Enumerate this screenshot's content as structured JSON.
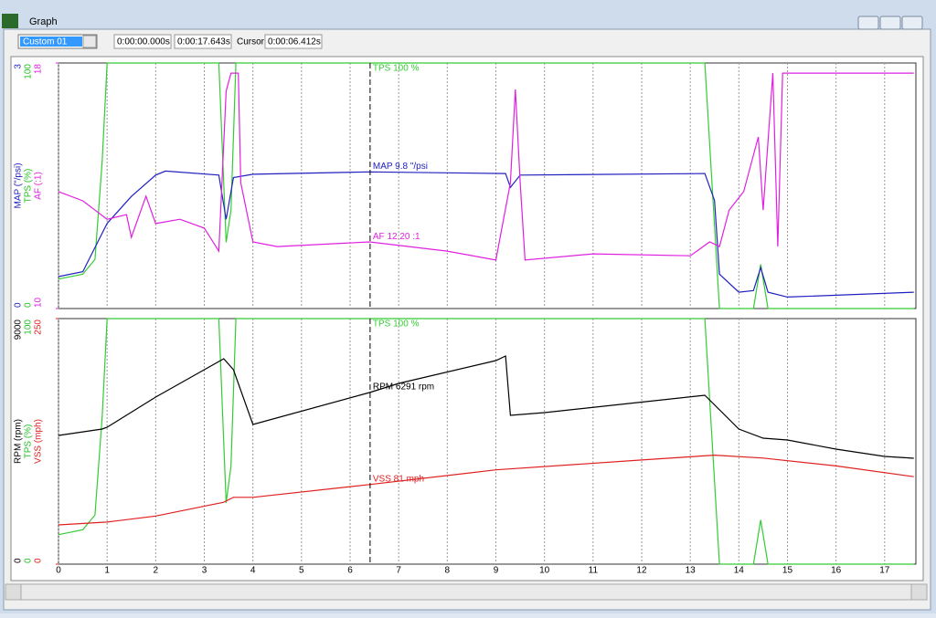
{
  "window": {
    "title": "Graph",
    "preset": "Custom 01",
    "start_time": "0:00:00.000s",
    "end_time": "0:00:17.643s",
    "cursor_caption": "Cursor",
    "cursor_time": "0:00:06.412s"
  },
  "chart_data": [
    {
      "type": "line",
      "xlim": [
        0,
        17.643
      ],
      "xticks": [
        0,
        1,
        2,
        3,
        4,
        5,
        6,
        7,
        8,
        9,
        10,
        11,
        12,
        13,
        14,
        15,
        16,
        17
      ],
      "cursor": 6.412,
      "axes": [
        {
          "label": "MAP (\"/psi)",
          "color": "#2020c0",
          "ylim": [
            0,
            3
          ],
          "yticks": [
            0,
            3
          ]
        },
        {
          "label": "TPS (%)",
          "color": "#20c020",
          "ylim": [
            0,
            100
          ],
          "yticks": [
            0,
            100
          ]
        },
        {
          "label": "AF (:1)",
          "color": "#e020e0",
          "ylim": [
            10,
            18
          ],
          "yticks": [
            10,
            18
          ]
        }
      ],
      "series": [
        {
          "axis": 1,
          "color": "#33cc33",
          "label": "TPS 100 %",
          "x": [
            0,
            0.5,
            0.75,
            0.9,
            1.0,
            3.3,
            3.45,
            3.55,
            3.65,
            13.3,
            13.45,
            13.6,
            14.3,
            14.45,
            14.6,
            17.6
          ],
          "values": [
            12,
            14,
            20,
            60,
            100,
            100,
            27,
            40,
            100,
            100,
            50,
            0,
            0,
            18,
            0,
            0
          ]
        },
        {
          "axis": 0,
          "color": "#2020c0",
          "label": "MAP 9.8 \"/psi",
          "x": [
            0,
            0.5,
            1.0,
            1.5,
            2.0,
            2.2,
            3.3,
            3.45,
            3.6,
            4.0,
            6.4,
            9.2,
            9.3,
            9.5,
            13.3,
            13.5,
            13.6,
            14.0,
            14.3,
            14.45,
            14.6,
            15.0,
            17.6
          ],
          "values": [
            0.39,
            0.45,
            1.04,
            1.37,
            1.63,
            1.68,
            1.63,
            1.09,
            1.6,
            1.64,
            1.67,
            1.65,
            1.48,
            1.63,
            1.65,
            1.32,
            0.42,
            0.2,
            0.22,
            0.5,
            0.2,
            0.14,
            0.2
          ]
        },
        {
          "axis": 2,
          "color": "#e020e0",
          "label": "AF 12.20 :1",
          "x": [
            0,
            0.5,
            1.0,
            1.4,
            1.5,
            1.8,
            2.0,
            2.5,
            3.0,
            3.3,
            3.45,
            3.55,
            3.7,
            3.75,
            4.0,
            4.5,
            6.4,
            8.0,
            9.0,
            9.3,
            9.4,
            9.5,
            9.6,
            11.0,
            13.0,
            13.4,
            13.6,
            13.8,
            14.1,
            14.4,
            14.5,
            14.7,
            14.8,
            14.9,
            17.6
          ],
          "values": [
            13.81,
            13.51,
            12.91,
            13.06,
            12.32,
            13.66,
            12.77,
            12.91,
            12.62,
            11.87,
            17.08,
            17.67,
            17.67,
            14.1,
            12.17,
            12.02,
            12.17,
            11.87,
            11.58,
            14.1,
            17.14,
            14.1,
            11.58,
            11.78,
            11.72,
            12.17,
            12.02,
            13.21,
            13.81,
            15.59,
            13.21,
            17.67,
            12.02,
            17.67,
            17.67
          ]
        }
      ]
    },
    {
      "type": "line",
      "xlim": [
        0,
        17.643
      ],
      "xticks": [
        0,
        1,
        2,
        3,
        4,
        5,
        6,
        7,
        8,
        9,
        10,
        11,
        12,
        13,
        14,
        15,
        16,
        17
      ],
      "cursor": 6.412,
      "axes": [
        {
          "label": "RPM (rpm)",
          "color": "#000000",
          "ylim": [
            0,
            9000
          ],
          "yticks": [
            0,
            9000
          ]
        },
        {
          "label": "TPS (%)",
          "color": "#20c020",
          "ylim": [
            0,
            100
          ],
          "yticks": [
            0,
            100
          ]
        },
        {
          "label": "VSS (mph)",
          "color": "#e02020",
          "ylim": [
            0,
            250
          ],
          "yticks": [
            0,
            250
          ]
        }
      ],
      "series": [
        {
          "axis": 1,
          "color": "#33cc33",
          "label": "TPS 100 %",
          "x": [
            0,
            0.5,
            0.75,
            0.9,
            1.0,
            3.3,
            3.45,
            3.55,
            3.65,
            13.3,
            13.45,
            13.6,
            14.3,
            14.45,
            14.6,
            17.6
          ],
          "values": [
            12,
            14,
            20,
            60,
            100,
            100,
            25,
            40,
            100,
            100,
            50,
            0,
            0,
            18,
            0,
            0
          ]
        },
        {
          "axis": 0,
          "color": "#000000",
          "label": "RPM 6291 rpm",
          "x": [
            0,
            0.9,
            1.0,
            2.0,
            3.0,
            3.4,
            3.6,
            4.0,
            6.4,
            7.0,
            9.0,
            9.2,
            9.3,
            10.0,
            13.3,
            14.0,
            14.5,
            15.0,
            16.0,
            17.0,
            17.6
          ],
          "values": [
            4717,
            4952,
            5019,
            6123,
            7126,
            7527,
            7126,
            5119,
            6290,
            6625,
            7461,
            7628,
            5454,
            5554,
            6190,
            4952,
            4617,
            4550,
            4216,
            3948,
            3881
          ]
        },
        {
          "axis": 2,
          "color": "#e02020",
          "label": "VSS 81 mph",
          "x": [
            0,
            1.0,
            2.0,
            3.4,
            3.6,
            4.0,
            6.4,
            9.0,
            12.0,
            13.5,
            14.5,
            16.0,
            17.6
          ],
          "values": [
            40,
            42.8,
            49,
            63,
            68,
            68,
            81,
            96,
            106,
            111,
            108,
            100,
            89
          ]
        }
      ]
    }
  ]
}
